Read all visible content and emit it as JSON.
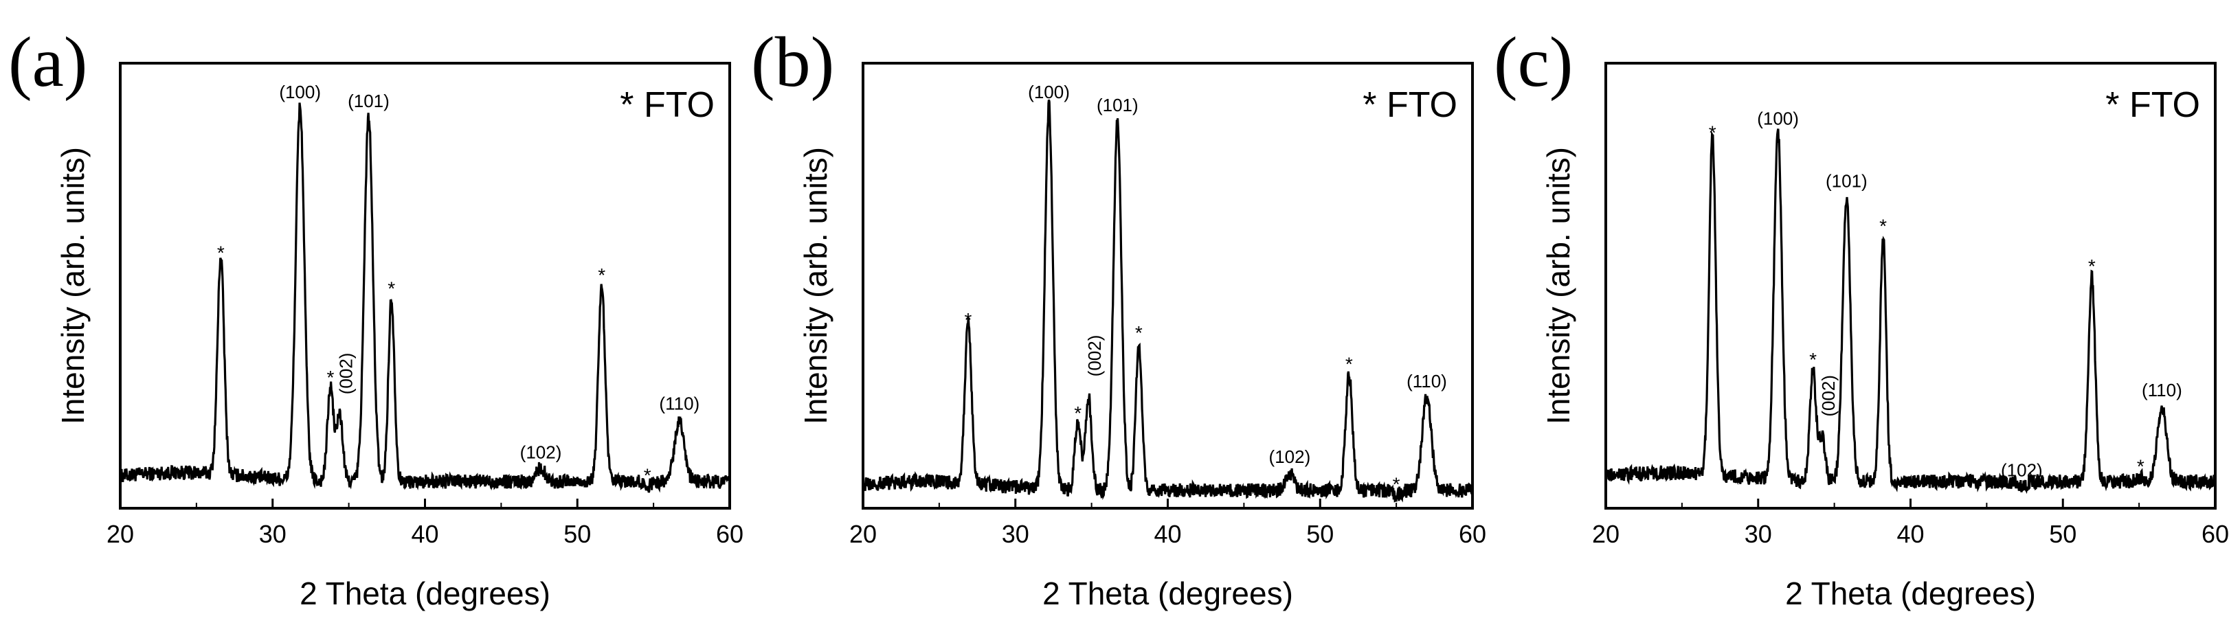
{
  "figure": {
    "shared_xlabel": "2 Theta (degrees)",
    "shared_ylabel": "Intensity (arb. units)"
  },
  "chart_data": [
    {
      "panel_label": "(a)",
      "type": "line",
      "title": "",
      "legend": "* FTO",
      "xlabel": "2 Theta (degrees)",
      "ylabel": "Intensity (arb. units)",
      "xlim": [
        20,
        60
      ],
      "ylim": [
        0,
        100
      ],
      "xticks": [
        "20",
        "30",
        "40",
        "50",
        "60"
      ],
      "baseline": 6,
      "peaks": [
        {
          "x": 26.6,
          "y": 55,
          "w": 0.22,
          "label": "*",
          "type": "fto"
        },
        {
          "x": 31.8,
          "y": 90,
          "w": 0.28,
          "label": "(100)",
          "type": "zno"
        },
        {
          "x": 33.8,
          "y": 27,
          "w": 0.2,
          "label": "*",
          "type": "fto"
        },
        {
          "x": 34.4,
          "y": 21,
          "w": 0.2,
          "label": "(002)",
          "type": "zno-rot"
        },
        {
          "x": 36.3,
          "y": 88,
          "w": 0.28,
          "label": "(101)",
          "type": "zno"
        },
        {
          "x": 37.8,
          "y": 47,
          "w": 0.2,
          "label": "*",
          "type": "fto"
        },
        {
          "x": 47.6,
          "y": 9,
          "w": 0.3,
          "label": "(102)",
          "type": "zno"
        },
        {
          "x": 51.6,
          "y": 50,
          "w": 0.22,
          "label": "*",
          "type": "fto"
        },
        {
          "x": 54.6,
          "y": 5,
          "w": 0.25,
          "label": "*",
          "type": "fto"
        },
        {
          "x": 56.7,
          "y": 20,
          "w": 0.32,
          "label": "(110)",
          "type": "zno"
        }
      ]
    },
    {
      "panel_label": "(b)",
      "type": "line",
      "title": "",
      "legend": "* FTO",
      "xlabel": "2 Theta (degrees)",
      "ylabel": "Intensity (arb. units)",
      "xlim": [
        20,
        60
      ],
      "ylim": [
        0,
        100
      ],
      "xticks": [
        "20",
        "30",
        "40",
        "50",
        "60"
      ],
      "baseline": 4,
      "peaks": [
        {
          "x": 26.9,
          "y": 40,
          "w": 0.22,
          "label": "*",
          "type": "fto"
        },
        {
          "x": 32.2,
          "y": 90,
          "w": 0.26,
          "label": "(100)",
          "type": "zno"
        },
        {
          "x": 34.1,
          "y": 19,
          "w": 0.2,
          "label": "*",
          "type": "fto"
        },
        {
          "x": 34.8,
          "y": 25,
          "w": 0.2,
          "label": "(002)",
          "type": "zno-rot"
        },
        {
          "x": 36.7,
          "y": 87,
          "w": 0.26,
          "label": "(101)",
          "type": "zno"
        },
        {
          "x": 38.1,
          "y": 37,
          "w": 0.2,
          "label": "*",
          "type": "fto"
        },
        {
          "x": 48.0,
          "y": 8,
          "w": 0.28,
          "label": "(102)",
          "type": "zno"
        },
        {
          "x": 51.9,
          "y": 30,
          "w": 0.22,
          "label": "*",
          "type": "fto"
        },
        {
          "x": 55.0,
          "y": 3,
          "w": 0.25,
          "label": "*",
          "type": "fto"
        },
        {
          "x": 57.0,
          "y": 25,
          "w": 0.3,
          "label": "(110)",
          "type": "zno"
        }
      ]
    },
    {
      "panel_label": "(c)",
      "type": "line",
      "title": "",
      "legend": "* FTO",
      "xlabel": "2 Theta (degrees)",
      "ylabel": "Intensity (arb. units)",
      "xlim": [
        20,
        60
      ],
      "ylim": [
        0,
        100
      ],
      "xticks": [
        "20",
        "30",
        "40",
        "50",
        "60"
      ],
      "baseline": 6,
      "peaks": [
        {
          "x": 27.0,
          "y": 82,
          "w": 0.22,
          "label": "*",
          "type": "fto"
        },
        {
          "x": 31.3,
          "y": 84,
          "w": 0.26,
          "label": "(100)",
          "type": "zno"
        },
        {
          "x": 33.6,
          "y": 31,
          "w": 0.2,
          "label": "*",
          "type": "fto"
        },
        {
          "x": 34.2,
          "y": 16,
          "w": 0.2,
          "label": "(002)",
          "type": "zno-rot"
        },
        {
          "x": 35.8,
          "y": 70,
          "w": 0.26,
          "label": "(101)",
          "type": "zno"
        },
        {
          "x": 38.2,
          "y": 61,
          "w": 0.2,
          "label": "*",
          "type": "fto"
        },
        {
          "x": 47.3,
          "y": 5,
          "w": 0.3,
          "label": "(102)",
          "type": "zno"
        },
        {
          "x": 51.9,
          "y": 52,
          "w": 0.22,
          "label": "*",
          "type": "fto"
        },
        {
          "x": 55.1,
          "y": 7,
          "w": 0.25,
          "label": "*",
          "type": "fto"
        },
        {
          "x": 56.5,
          "y": 23,
          "w": 0.3,
          "label": "(110)",
          "type": "zno"
        }
      ]
    }
  ]
}
